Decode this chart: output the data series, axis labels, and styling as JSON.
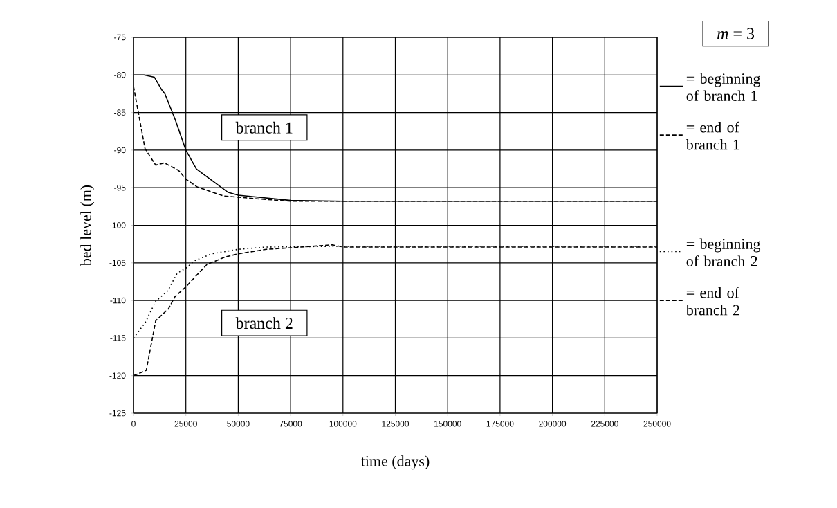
{
  "chart_data": {
    "type": "line",
    "xlabel": "time (days)",
    "ylabel": "bed level (m)",
    "xlim": [
      0,
      250000
    ],
    "ylim": [
      -125,
      -75
    ],
    "xticks": [
      0,
      25000,
      50000,
      75000,
      100000,
      125000,
      150000,
      175000,
      200000,
      225000,
      250000
    ],
    "yticks": [
      -125,
      -120,
      -115,
      -110,
      -105,
      -100,
      -95,
      -90,
      -85,
      -80,
      -75
    ],
    "grid": true,
    "legend": "right",
    "marker": "none",
    "annotations": [
      "branch 1",
      "branch 2",
      "*m* = 3"
    ],
    "series": [
      {
        "name": "= beginning of branch 1",
        "color": "#000000",
        "line_style": "solid",
        "x": [
          0,
          5000,
          10000,
          13300,
          15000,
          20000,
          25000,
          30000,
          45000,
          50000,
          75000,
          100000,
          150000,
          200000,
          250000
        ],
        "values": [
          -80,
          -80,
          -80.3,
          -81.9,
          -82.5,
          -86,
          -90,
          -92.5,
          -95.6,
          -96,
          -96.7,
          -96.8,
          -96.8,
          -96.8,
          -96.8
        ]
      },
      {
        "name": "= end of branch 1",
        "color": "#000000",
        "line_style": "dashed",
        "x": [
          0,
          5500,
          10600,
          14700,
          21500,
          25200,
          30400,
          43000,
          60000,
          75000,
          100000,
          150000,
          200000,
          250000
        ],
        "values": [
          -81.5,
          -89.8,
          -92,
          -91.7,
          -92.7,
          -93.9,
          -94.9,
          -96.1,
          -96.5,
          -96.8,
          -96.8,
          -96.8,
          -96.8,
          -96.8
        ]
      },
      {
        "name": "= beginning of branch 2",
        "color": "#000000",
        "line_style": "dotted",
        "x": [
          0,
          5500,
          10600,
          16400,
          20800,
          25000,
          29300,
          37200,
          50000,
          63400,
          100000,
          150000,
          200000,
          250000
        ],
        "values": [
          -115,
          -113,
          -110.1,
          -108.7,
          -106.4,
          -105.7,
          -104.7,
          -103.8,
          -103.2,
          -102.9,
          -102.8,
          -102.8,
          -102.8,
          -102.8
        ]
      },
      {
        "name": "= end of branch 2",
        "color": "#000000",
        "line_style": "dashed",
        "x": [
          0,
          6100,
          10600,
          16700,
          19800,
          25000,
          29300,
          35100,
          44000,
          50000,
          63400,
          75000,
          95000,
          100000,
          150000,
          200000,
          250000
        ],
        "values": [
          -120,
          -119.3,
          -112.7,
          -111.1,
          -109.5,
          -108.2,
          -106.9,
          -105.2,
          -104.2,
          -103.8,
          -103.2,
          -103,
          -102.6,
          -102.9,
          -102.9,
          -102.9,
          -102.9
        ]
      }
    ]
  }
}
